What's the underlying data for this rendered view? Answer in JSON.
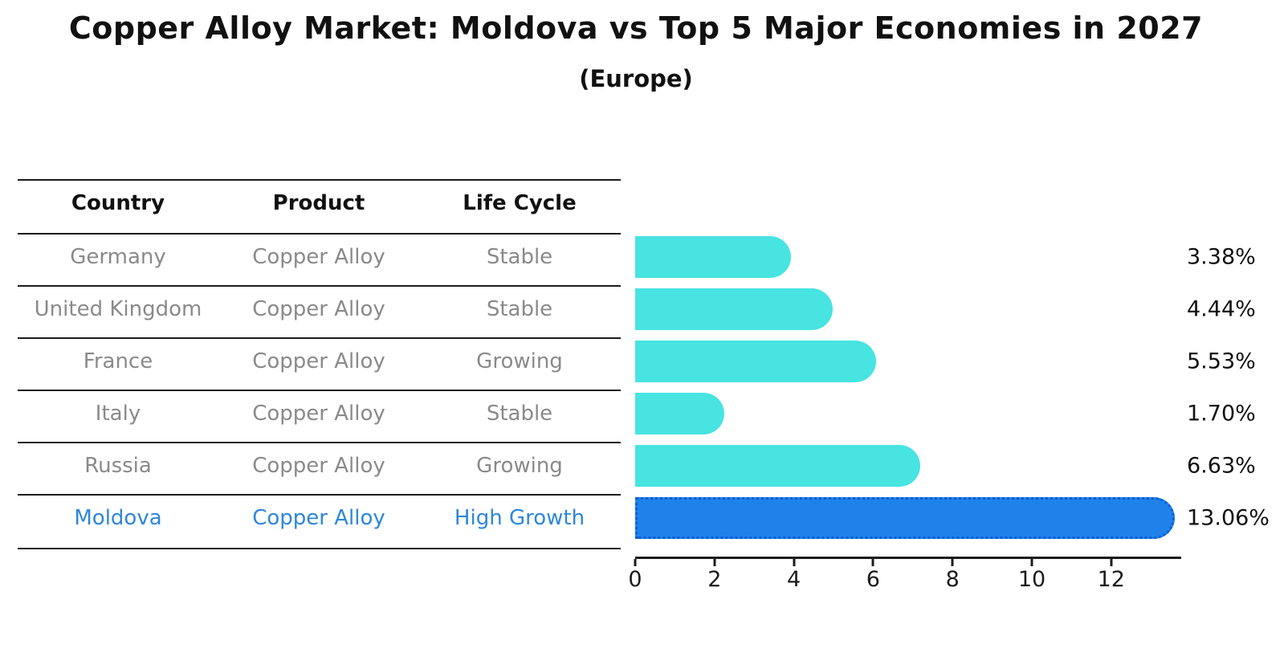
{
  "title": "Copper Alloy Market: Moldova vs Top 5 Major Economies in 2027",
  "subtitle": "(Europe)",
  "table": {
    "headers": [
      "Country",
      "Product",
      "Life Cycle"
    ],
    "rows": [
      {
        "country": "Germany",
        "product": "Copper Alloy",
        "life_cycle": "Stable",
        "highlighted": false
      },
      {
        "country": "United Kingdom",
        "product": "Copper Alloy",
        "life_cycle": "Stable",
        "highlighted": false
      },
      {
        "country": "France",
        "product": "Copper Alloy",
        "life_cycle": "Growing",
        "highlighted": false
      },
      {
        "country": "Italy",
        "product": "Copper Alloy",
        "life_cycle": "Stable",
        "highlighted": false
      },
      {
        "country": "Russia",
        "product": "Copper Alloy",
        "life_cycle": "Growing",
        "highlighted": false
      },
      {
        "country": "Moldova",
        "product": "Copper Alloy",
        "life_cycle": "High Growth",
        "highlighted": true
      }
    ]
  },
  "chart_data": {
    "type": "bar",
    "orientation": "horizontal",
    "title": "Copper Alloy Market: Moldova vs Top 5 Major Economies in 2027",
    "subtitle": "(Europe)",
    "categories": [
      "Germany",
      "United Kingdom",
      "France",
      "Italy",
      "Russia",
      "Moldova"
    ],
    "values": [
      3.38,
      4.44,
      5.53,
      1.7,
      6.63,
      13.06
    ],
    "value_labels": [
      "3.38%",
      "4.44%",
      "5.53%",
      "1.70%",
      "6.63%",
      "13.06%"
    ],
    "xlabel": "",
    "ylabel": "",
    "x_ticks": [
      0,
      2,
      4,
      6,
      8,
      10,
      12
    ],
    "xlim": [
      0,
      13.7
    ],
    "grid": false,
    "legend": false,
    "highlight_index": 5,
    "bar_color": "#47E4E1",
    "highlight_bar_color": "#1E82EA",
    "highlight_border_color": "#0C5FD2"
  },
  "colors": {
    "text": "#111111",
    "muted_text": "#8a8a8a",
    "highlight_text": "#2E86DE",
    "line": "#1c1c1c",
    "background": "#ffffff"
  }
}
